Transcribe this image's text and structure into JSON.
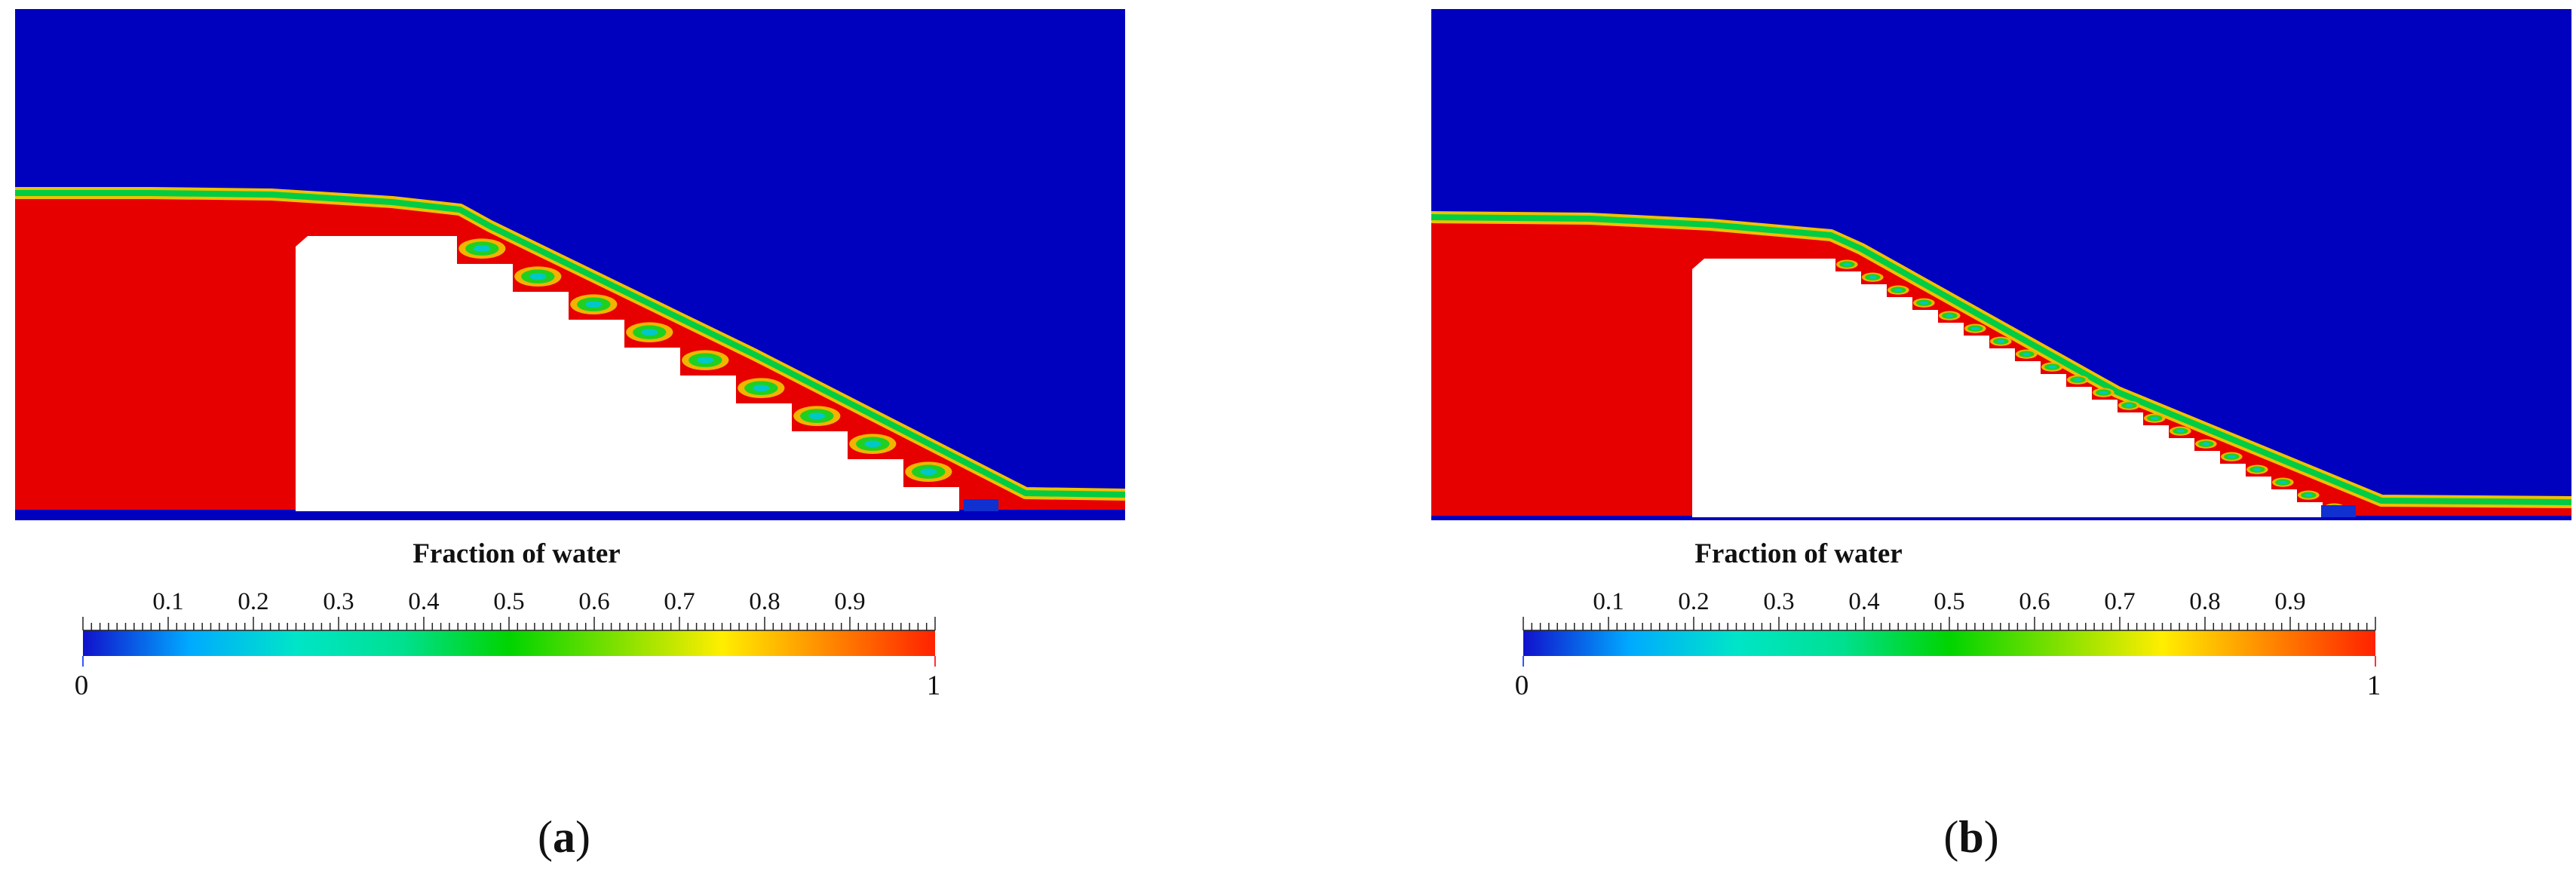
{
  "colorbar": {
    "title": "Fraction of water",
    "tick_labels": [
      "0.1",
      "0.2",
      "0.3",
      "0.4",
      "0.5",
      "0.6",
      "0.7",
      "0.8",
      "0.9"
    ],
    "min_label": "0",
    "max_label": "1",
    "colors": [
      "#1111cc",
      "#00aaff",
      "#00e5c8",
      "#00e090",
      "#00d400",
      "#7ee000",
      "#ffee00",
      "#ff8800",
      "#ff2200"
    ]
  },
  "field_colors": {
    "air": "#0000bf",
    "water": "#e60000",
    "interface": "#00cc44"
  },
  "panels": [
    {
      "id": "a",
      "open": "(",
      "letter": "a",
      "close": ")"
    },
    {
      "id": "b",
      "open": "(",
      "letter": "b",
      "close": ")"
    }
  ]
}
